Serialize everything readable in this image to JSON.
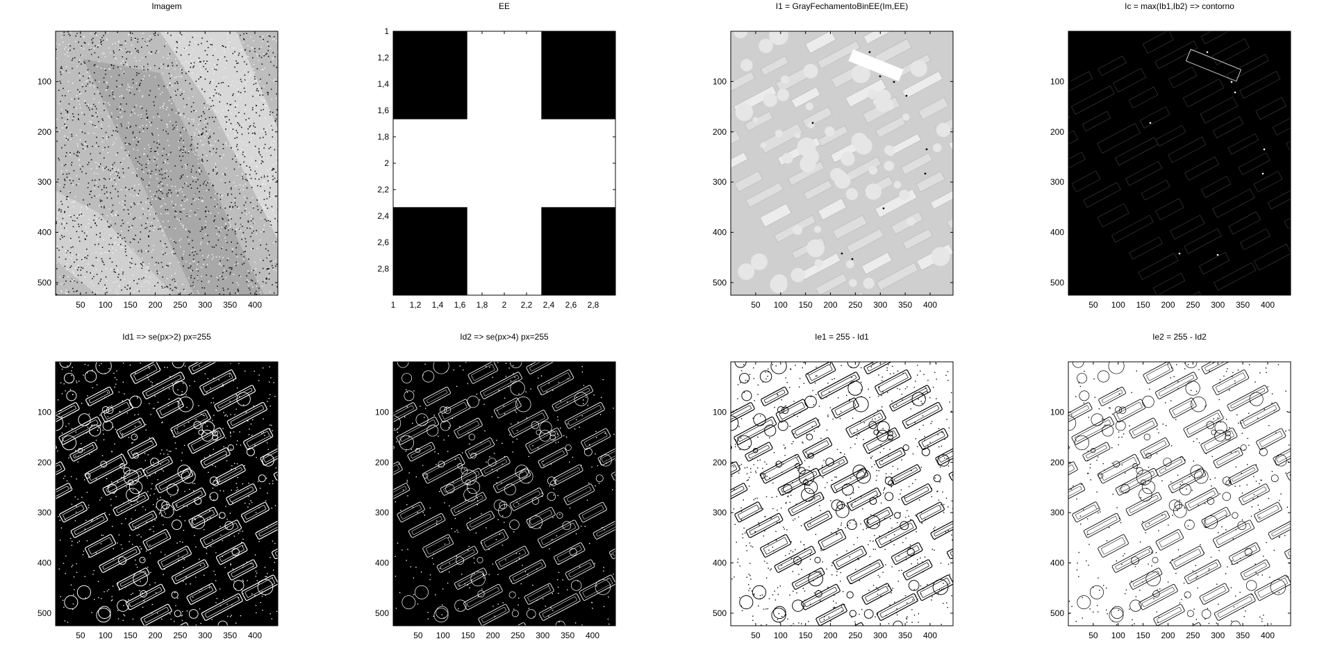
{
  "figure": {
    "panels": [
      {
        "id": "imagem",
        "title": "Imagem",
        "kind": "noisy-gray",
        "yticks": [
          "100",
          "200",
          "300",
          "400",
          "500"
        ],
        "xticks": [
          "50",
          "100",
          "150",
          "200",
          "250",
          "300",
          "350",
          "400"
        ]
      },
      {
        "id": "ee",
        "title": "EE",
        "kind": "cross",
        "yticks": [
          "1",
          "1,2",
          "1,4",
          "1,6",
          "1,8",
          "2",
          "2,2",
          "2,4",
          "2,6",
          "2,8"
        ],
        "xticks": [
          "1",
          "1,2",
          "1,4",
          "1,6",
          "1,8",
          "2",
          "2,2",
          "2,4",
          "2,6",
          "2,8"
        ]
      },
      {
        "id": "i1",
        "title": "I1 = GrayFechamentoBinEE(Im,EE)",
        "kind": "gray-blocks",
        "yticks": [
          "100",
          "200",
          "300",
          "400",
          "500"
        ],
        "xticks": [
          "50",
          "100",
          "150",
          "200",
          "250",
          "300",
          "350",
          "400"
        ]
      },
      {
        "id": "ic",
        "title": "Ic = max(Ib1,Ib2) => contorno",
        "kind": "dark-contour",
        "yticks": [
          "100",
          "200",
          "300",
          "400",
          "500"
        ],
        "xticks": [
          "50",
          "100",
          "150",
          "200",
          "250",
          "300",
          "350",
          "400"
        ]
      },
      {
        "id": "id1",
        "title": "Id1 => se(px>2) px=255",
        "kind": "edges-on-black",
        "yticks": [
          "100",
          "200",
          "300",
          "400",
          "500"
        ],
        "xticks": [
          "50",
          "100",
          "150",
          "200",
          "250",
          "300",
          "350",
          "400"
        ]
      },
      {
        "id": "id2",
        "title": "Id2 => se(px>4) px=255",
        "kind": "edges-on-black",
        "yticks": [
          "100",
          "200",
          "300",
          "400",
          "500"
        ],
        "xticks": [
          "50",
          "100",
          "150",
          "200",
          "250",
          "300",
          "350",
          "400"
        ]
      },
      {
        "id": "ie1",
        "title": "Ie1 = 255 - Id1",
        "kind": "edges-on-white",
        "yticks": [
          "100",
          "200",
          "300",
          "400",
          "500"
        ],
        "xticks": [
          "50",
          "100",
          "150",
          "200",
          "250",
          "300",
          "350",
          "400"
        ]
      },
      {
        "id": "ie2",
        "title": "Ie2 = 255 - Id2",
        "kind": "edges-on-white",
        "yticks": [
          "100",
          "200",
          "300",
          "400",
          "500"
        ],
        "xticks": [
          "50",
          "100",
          "150",
          "200",
          "250",
          "300",
          "350",
          "400"
        ]
      }
    ]
  }
}
